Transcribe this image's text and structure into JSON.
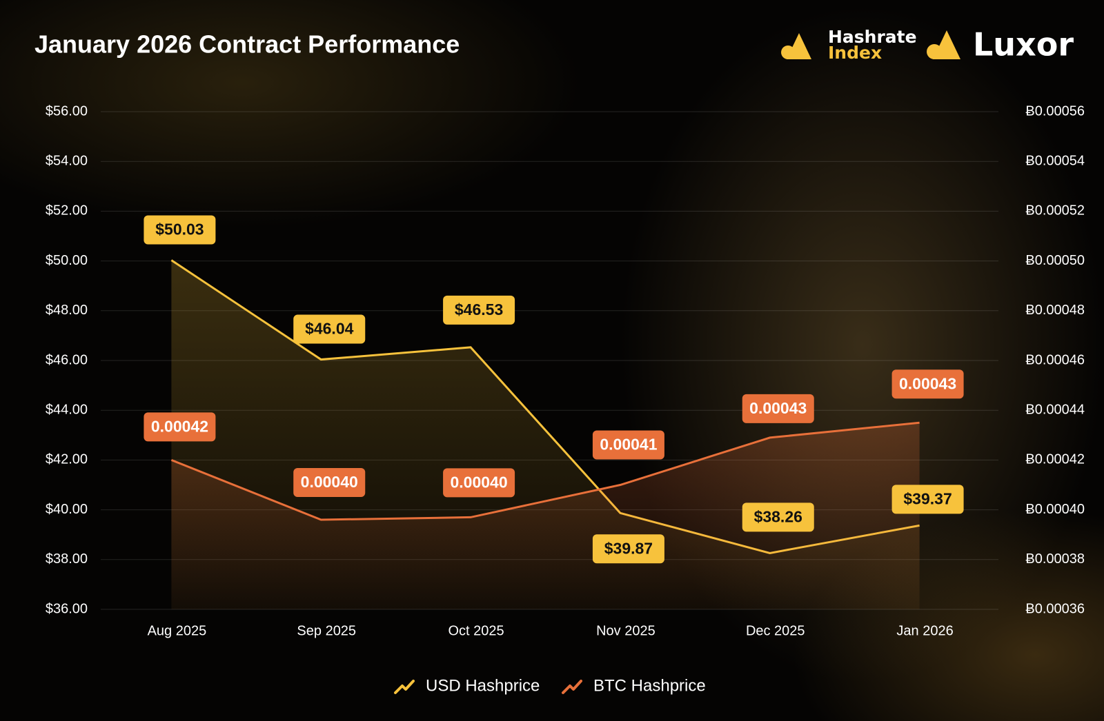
{
  "brand": {
    "hashrate_index": [
      "Hashrate",
      "Index"
    ],
    "luxor": "Luxor"
  },
  "chart_data": {
    "type": "line",
    "title": "January 2026 Contract Performance",
    "categories": [
      "Aug 2025",
      "Sep 2025",
      "Oct 2025",
      "Nov 2025",
      "Dec 2025",
      "Jan 2026"
    ],
    "series": [
      {
        "name": "USD Hashprice",
        "color": "#f7c23c",
        "values": [
          50.03,
          46.04,
          46.53,
          39.87,
          38.26,
          39.37
        ],
        "value_labels": [
          "$50.03",
          "$46.04",
          "$46.53",
          "$39.87",
          "$38.26",
          "$39.37"
        ]
      },
      {
        "name": "BTC Hashprice",
        "color": "#e8703a",
        "axis": "y2",
        "values": [
          0.00042,
          0.000396,
          0.000397,
          0.00041,
          0.000429,
          0.000435
        ],
        "value_labels": [
          "0.00042",
          "0.00040",
          "0.00040",
          "0.00041",
          "0.00043",
          "0.00043"
        ]
      }
    ],
    "ylim": [
      36,
      56
    ],
    "yticks": [
      {
        "value": 36,
        "label": "$36.00"
      },
      {
        "value": 38,
        "label": "$38.00"
      },
      {
        "value": 40,
        "label": "$40.00"
      },
      {
        "value": 42,
        "label": "$42.00"
      },
      {
        "value": 44,
        "label": "$44.00"
      },
      {
        "value": 46,
        "label": "$46.00"
      },
      {
        "value": 48,
        "label": "$48.00"
      },
      {
        "value": 50,
        "label": "$50.00"
      },
      {
        "value": 52,
        "label": "$52.00"
      },
      {
        "value": 54,
        "label": "$54.00"
      },
      {
        "value": 56,
        "label": "$56.00"
      }
    ],
    "y2lim": [
      0.00036,
      0.00056
    ],
    "y2ticks": [
      {
        "value": 0.00036,
        "label": "Ƀ0.00036"
      },
      {
        "value": 0.00038,
        "label": "Ƀ0.00038"
      },
      {
        "value": 0.0004,
        "label": "Ƀ0.00040"
      },
      {
        "value": 0.00042,
        "label": "Ƀ0.00042"
      },
      {
        "value": 0.00044,
        "label": "Ƀ0.00044"
      },
      {
        "value": 0.00046,
        "label": "Ƀ0.00046"
      },
      {
        "value": 0.00048,
        "label": "Ƀ0.00048"
      },
      {
        "value": 0.0005,
        "label": "Ƀ0.00050"
      },
      {
        "value": 0.00052,
        "label": "Ƀ0.00052"
      },
      {
        "value": 0.00054,
        "label": "Ƀ0.00054"
      },
      {
        "value": 0.00056,
        "label": "Ƀ0.00056"
      }
    ],
    "grid": true,
    "legend": "bottom"
  }
}
